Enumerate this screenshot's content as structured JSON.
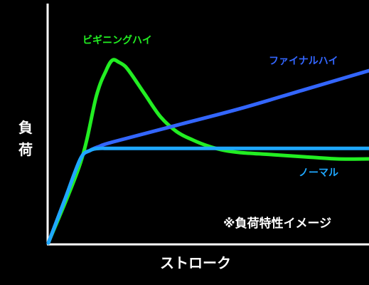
{
  "chart_data": {
    "type": "line",
    "ylabel": "負荷",
    "xlabel": "ストローク",
    "note": "※負荷特性イメージ",
    "grid": false,
    "xlim": [
      0,
      100
    ],
    "ylim": [
      0,
      100
    ],
    "series": [
      {
        "name": "ビギニングハイ",
        "color": "#22ee22",
        "x": [
          0,
          10,
          15,
          18,
          20,
          22,
          24,
          26,
          30,
          35,
          40,
          45,
          50,
          55,
          60,
          70,
          80,
          90,
          100
        ],
        "y": [
          0,
          38,
          70,
          82,
          87,
          86,
          84,
          80,
          71,
          60,
          53,
          49,
          46,
          44,
          43,
          42,
          41,
          40,
          40
        ]
      },
      {
        "name": "ファイナルハイ",
        "color": "#3366ff",
        "x": [
          0,
          5,
          10,
          13,
          16,
          20,
          40,
          60,
          80,
          100
        ],
        "y": [
          0,
          20,
          40,
          44,
          46,
          48,
          56,
          64,
          73,
          82
        ]
      },
      {
        "name": "ノーマル",
        "color": "#1fa8ff",
        "x": [
          0,
          5,
          10,
          13,
          16,
          20,
          40,
          60,
          80,
          100
        ],
        "y": [
          0,
          20,
          40,
          44,
          45,
          45,
          45,
          45,
          45,
          45
        ]
      }
    ]
  }
}
